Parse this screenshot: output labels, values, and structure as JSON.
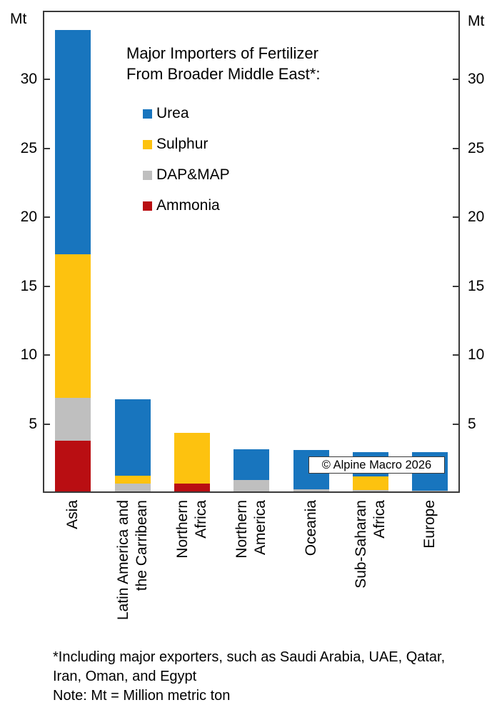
{
  "chart_data": {
    "type": "bar",
    "stacked": true,
    "title": "Major Importers of Fertilizer\nFrom Broader Middle East*:",
    "unit": "Mt",
    "axis_label_left": "Mt",
    "axis_label_right": "Mt",
    "categories": [
      "Asia",
      "Latin America and\nthe Carribean",
      "Northern\nAfrica",
      "Northern\nAmerica",
      "Oceania",
      "Sub-Saharan\nAfrica",
      "Europe"
    ],
    "series": [
      {
        "name": "Urea",
        "color": "#1875BE",
        "values": [
          16.3,
          5.55,
          0,
          2.2,
          2.85,
          1.75,
          2.8
        ]
      },
      {
        "name": "Sulphur",
        "color": "#FDC20F",
        "values": [
          10.4,
          0.6,
          3.7,
          0,
          0,
          1.0,
          0
        ]
      },
      {
        "name": "DAP&MAP",
        "color": "#BFBFBF",
        "values": [
          3.1,
          0.65,
          0,
          0.95,
          0.25,
          0.2,
          0.15
        ]
      },
      {
        "name": "Ammonia",
        "color": "#B90E12",
        "values": [
          3.8,
          0,
          0.65,
          0,
          0,
          0,
          0
        ]
      }
    ],
    "stack_bottom_to_top": [
      "Ammonia",
      "DAP&MAP",
      "Sulphur",
      "Urea"
    ],
    "totals": [
      33.6,
      6.8,
      4.35,
      3.15,
      3.1,
      2.95,
      2.95
    ],
    "ylim": [
      0,
      35
    ],
    "yticks": [
      5,
      10,
      15,
      20,
      25,
      30
    ],
    "grid": false,
    "legend_position": "upper-center-inside",
    "annotation": "© Alpine Macro 2026"
  },
  "footnote": "*Including major exporters, such as Saudi Arabia, UAE, Qatar,\nIran, Oman, and Egypt\nNote: Mt = Million metric ton"
}
